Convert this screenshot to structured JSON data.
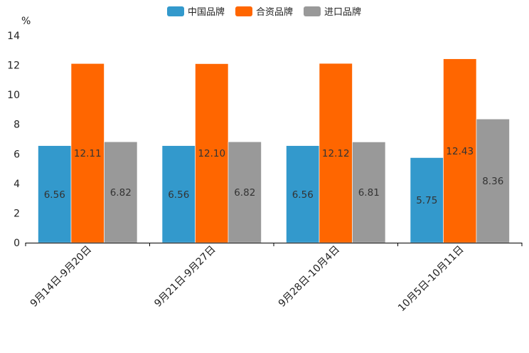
{
  "chart_data": {
    "type": "bar",
    "ylabel": "%",
    "ylim": [
      0,
      14
    ],
    "yticks": [
      0,
      2,
      4,
      6,
      8,
      10,
      12,
      14
    ],
    "legend_position": "top-center",
    "categories": [
      "9月14日-9月20日",
      "9月21日-9月27日",
      "9月28日-10月4日",
      "10月5日-10月11日"
    ],
    "series": [
      {
        "name": "中国品牌",
        "color": "#3399cc",
        "values": [
          6.56,
          6.56,
          6.56,
          5.75
        ],
        "labels": [
          "6.56",
          "6.56",
          "6.56",
          "5.75"
        ]
      },
      {
        "name": "合资品牌",
        "color": "#ff6600",
        "values": [
          12.11,
          12.1,
          12.12,
          12.43
        ],
        "labels": [
          "12.11",
          "12.10",
          "12.12",
          "12.43"
        ]
      },
      {
        "name": "进口品牌",
        "color": "#999999",
        "values": [
          6.82,
          6.82,
          6.81,
          8.36
        ],
        "labels": [
          "6.82",
          "6.82",
          "6.81",
          "8.36"
        ]
      }
    ]
  }
}
